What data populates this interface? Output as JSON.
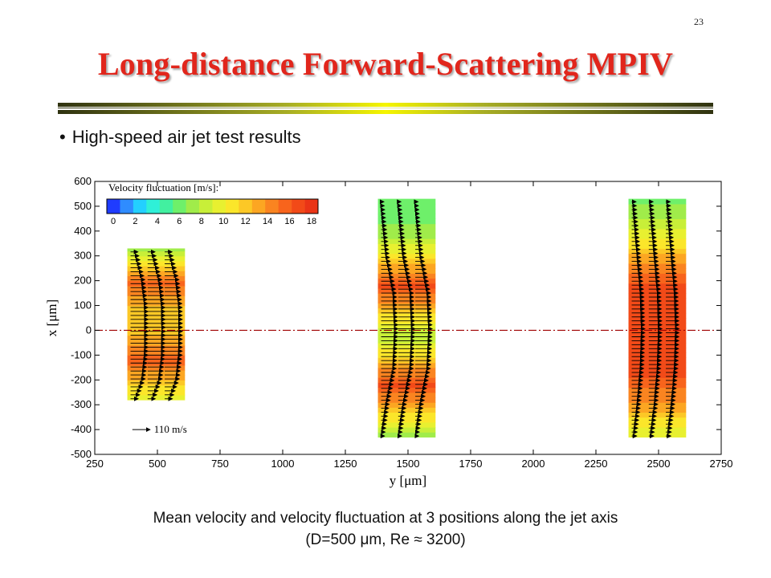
{
  "page_number": "23",
  "title": "Long-distance Forward-Scattering MPIV",
  "bullet": "High-speed air jet test results",
  "caption": {
    "line1": "Mean velocity and velocity fluctuation at 3 positions along the jet axis",
    "line2": "(D=500 μm, Re ≈ 3200)"
  },
  "colors": {
    "title": "#e1261c",
    "axis_line": "#a00000"
  },
  "chart_data": {
    "type": "heatmap",
    "xlabel": "y [μm]",
    "ylabel": "x [μm]",
    "xlim": [
      250,
      2750
    ],
    "ylim": [
      -500,
      600
    ],
    "x_ticks": [
      250,
      500,
      750,
      1000,
      1250,
      1500,
      1750,
      2000,
      2250,
      2500,
      2750
    ],
    "y_ticks": [
      -500,
      -400,
      -300,
      -200,
      -100,
      0,
      100,
      200,
      300,
      400,
      500,
      600
    ],
    "colorbar": {
      "label": "Velocity fluctuation [m/s]:",
      "ticks": [
        0,
        2,
        4,
        6,
        8,
        10,
        12,
        14,
        16,
        18
      ],
      "min": 0,
      "max": 18,
      "colors": [
        "#1f3cff",
        "#2f8cff",
        "#23d0ff",
        "#2ff0d8",
        "#42f0a0",
        "#6ef06a",
        "#a0ec4a",
        "#c8ef38",
        "#e8f030",
        "#fbe62a",
        "#fcc826",
        "#fca622",
        "#fa8420",
        "#f8641c",
        "#f24a18",
        "#ea3416"
      ]
    },
    "reference_vector": {
      "label": "110 m/s",
      "value": 110
    },
    "axis_line_x": 0,
    "regions": [
      {
        "y_range": [
          380,
          610
        ],
        "x_range": [
          -280,
          330
        ],
        "fluctuation_profile": [
          [
            -280,
            9
          ],
          [
            -200,
            12
          ],
          [
            -120,
            15
          ],
          [
            -40,
            13
          ],
          [
            40,
            11
          ],
          [
            120,
            13
          ],
          [
            200,
            15
          ],
          [
            260,
            11
          ],
          [
            330,
            7
          ]
        ],
        "vector_lengths": [
          [
            -280,
            45
          ],
          [
            -200,
            90
          ],
          [
            -100,
            108
          ],
          [
            0,
            110
          ],
          [
            100,
            108
          ],
          [
            200,
            90
          ],
          [
            330,
            40
          ]
        ]
      },
      {
        "y_range": [
          1380,
          1610
        ],
        "x_range": [
          -430,
          530
        ],
        "fluctuation_profile": [
          [
            -430,
            7
          ],
          [
            -320,
            12
          ],
          [
            -220,
            16
          ],
          [
            -120,
            12
          ],
          [
            -20,
            8
          ],
          [
            80,
            12
          ],
          [
            180,
            16
          ],
          [
            270,
            12
          ],
          [
            370,
            8
          ],
          [
            450,
            6
          ],
          [
            530,
            6
          ]
        ],
        "vector_lengths": [
          [
            -430,
            20
          ],
          [
            -300,
            50
          ],
          [
            -150,
            95
          ],
          [
            0,
            105
          ],
          [
            150,
            95
          ],
          [
            300,
            50
          ],
          [
            530,
            15
          ]
        ]
      },
      {
        "y_range": [
          2380,
          2610
        ],
        "x_range": [
          -430,
          530
        ],
        "fluctuation_profile": [
          [
            -430,
            9
          ],
          [
            -300,
            13
          ],
          [
            -180,
            16
          ],
          [
            -60,
            16
          ],
          [
            60,
            16
          ],
          [
            180,
            16
          ],
          [
            280,
            13
          ],
          [
            380,
            10
          ],
          [
            530,
            6
          ]
        ],
        "vector_lengths": [
          [
            -430,
            30
          ],
          [
            -300,
            55
          ],
          [
            -150,
            75
          ],
          [
            0,
            82
          ],
          [
            150,
            75
          ],
          [
            300,
            55
          ],
          [
            530,
            25
          ]
        ]
      }
    ]
  }
}
